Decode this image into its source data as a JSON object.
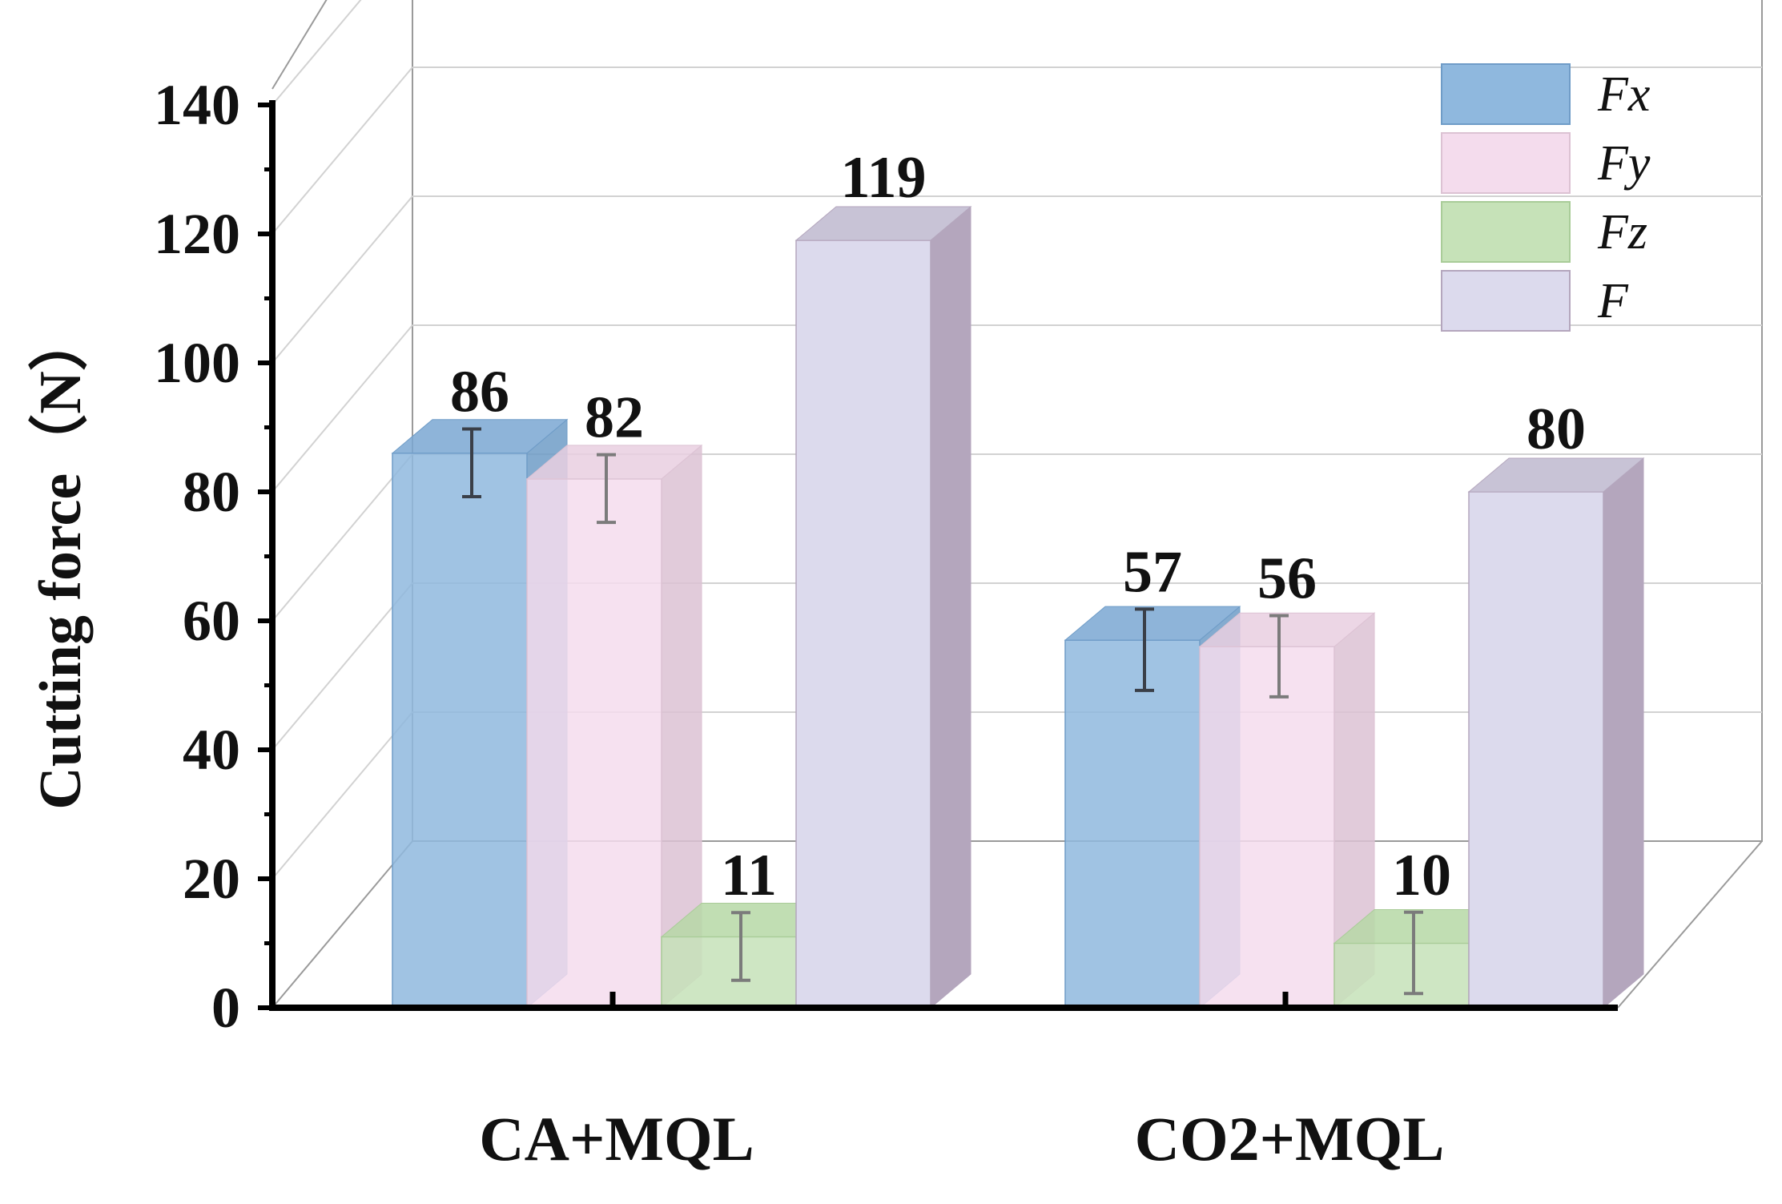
{
  "chart_data": {
    "type": "bar",
    "title": "",
    "xlabel": "",
    "ylabel": "Cutting force（N）",
    "ylim": [
      0,
      140
    ],
    "yticks": [
      0,
      20,
      40,
      60,
      80,
      100,
      120,
      140
    ],
    "ytick_labels": [
      "0",
      "20",
      "40",
      "60",
      "80",
      "100",
      "120",
      "140"
    ],
    "grid": true,
    "legend_position": "top-right",
    "categories": [
      "CA+MQL",
      "CO2+MQL"
    ],
    "series": [
      {
        "name": "Fx",
        "values": [
          86,
          57
        ],
        "error": [
          5,
          6
        ],
        "data_labels": [
          "86",
          "57"
        ],
        "color": "#8fb8de",
        "side_color": "#6f9cc7",
        "top_color": "#7aa7d2"
      },
      {
        "name": "Fy",
        "values": [
          82,
          56
        ],
        "error": [
          5,
          6
        ],
        "data_labels": [
          "82",
          "56"
        ],
        "color": "#f4dced",
        "side_color": "#dcc2d3",
        "top_color": "#e9cfe1"
      },
      {
        "name": "Fz",
        "values": [
          11,
          10
        ],
        "error": [
          5,
          6
        ],
        "data_labels": [
          "11",
          "10"
        ],
        "color": "#c6e2b8",
        "side_color": "#a9cc98",
        "top_color": "#b6d8a6"
      },
      {
        "name": "F",
        "values": [
          119,
          80
        ],
        "error": [
          0,
          0
        ],
        "data_labels": [
          "119",
          "80"
        ],
        "color": "#dcdaed",
        "side_color": "#b4a6bd",
        "top_color": "#c8c3d6"
      }
    ]
  }
}
